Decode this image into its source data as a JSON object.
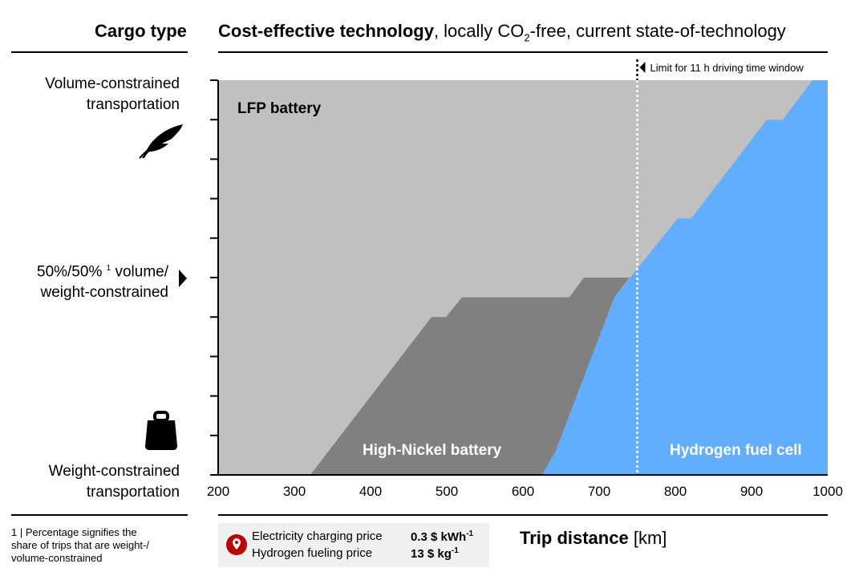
{
  "header": {
    "left": "Cargo type",
    "title_bold": "Cost-effective technology",
    "title_rest_1": ", locally CO",
    "title_sub": "2",
    "title_rest_2": "-free, current state-of-technology"
  },
  "cargo_labels": {
    "top": [
      "Volume-constrained",
      "transportation"
    ],
    "middle": [
      "50%/50% ",
      "1",
      " volume/",
      "weight-constrained"
    ],
    "bottom": [
      "Weight-constrained",
      "transportation"
    ]
  },
  "icons": {
    "top": "feather-icon",
    "middle": "triangle-right-icon",
    "bottom": "weight-icon",
    "legend": "location-pin-icon"
  },
  "footnote": [
    "1 | Percentage signifies the",
    "share of trips that are weight-/",
    "volume-constrained"
  ],
  "legend": {
    "rows": [
      {
        "label": "Electricity charging price",
        "value": "0.3 $ kWh",
        "exp": "-1"
      },
      {
        "label": "Hydrogen fueling price",
        "value": "13 $ kg",
        "exp": "-1"
      }
    ]
  },
  "xlabel": {
    "bold": "Trip distance",
    "unit": " [km]"
  },
  "colors": {
    "lfp": "#c0c0c0",
    "nickel": "#808080",
    "hydrogen": "#61adff",
    "pin": "#c00000"
  },
  "chart_data": {
    "type": "area",
    "xlim": [
      200,
      1000
    ],
    "ylim": [
      0,
      1
    ],
    "x_ticks": [
      200,
      300,
      400,
      500,
      600,
      700,
      800,
      900,
      1000
    ],
    "x_tick_labels": [
      "200",
      "300",
      "400",
      "500",
      "600",
      "700",
      "800",
      "900",
      "1000"
    ],
    "y_ticks": [
      0,
      0.1,
      0.2,
      0.3,
      0.4,
      0.5,
      0.6,
      0.7,
      0.8,
      0.9,
      1.0
    ],
    "regions": [
      {
        "name": "LFP battery",
        "color": "#c0c0c0",
        "points": [
          [
            200,
            0
          ],
          [
            200,
            1
          ],
          [
            1000,
            1
          ],
          [
            1000,
            0
          ]
        ]
      },
      {
        "name": "High-Nickel battery",
        "color": "#808080",
        "points": [
          [
            321,
            0
          ],
          [
            480,
            0.4
          ],
          [
            499,
            0.4
          ],
          [
            520,
            0.45
          ],
          [
            661,
            0.45
          ],
          [
            680,
            0.5
          ],
          [
            740,
            0.5
          ],
          [
            720,
            0.45
          ],
          [
            643,
            0.06
          ],
          [
            625,
            0
          ]
        ]
      },
      {
        "name": "Hydrogen fuel cell",
        "color": "#61adff",
        "points": [
          [
            625,
            0
          ],
          [
            643,
            0.06
          ],
          [
            720,
            0.45
          ],
          [
            803,
            0.65
          ],
          [
            821,
            0.65
          ],
          [
            920,
            0.9
          ],
          [
            941,
            0.9
          ],
          [
            980,
            1.0
          ],
          [
            1000,
            1.0
          ],
          [
            1000,
            0
          ]
        ]
      }
    ],
    "annotation": {
      "x": 750,
      "text": "Limit for 11 h driving time window"
    }
  }
}
